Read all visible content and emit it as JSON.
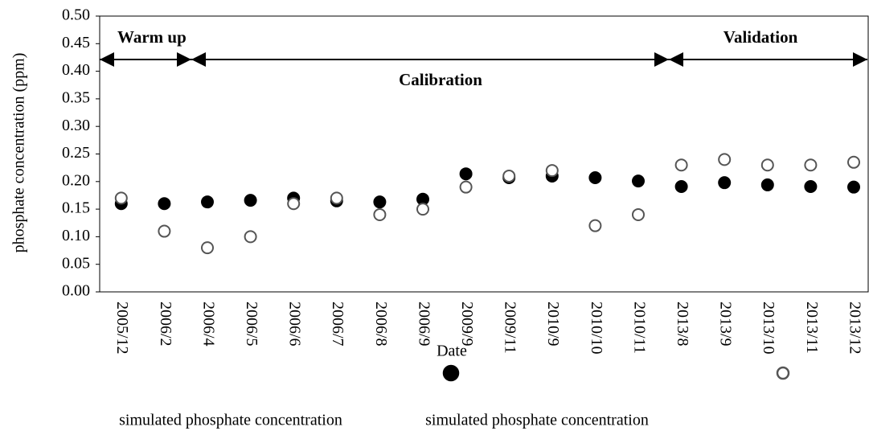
{
  "chart_data": {
    "type": "scatter",
    "ylabel": "phosphate concentration (ppm)",
    "xlabel": "Date",
    "annotations": [
      "Warm up",
      "Calibration",
      "Validation"
    ],
    "categories": [
      "2005/12",
      "2006/2",
      "2006/4",
      "2006/5",
      "2006/6",
      "2006/7",
      "2006/8",
      "2006/9",
      "2009/9",
      "2009/11",
      "2010/9",
      "2010/10",
      "2010/11",
      "2013/8",
      "2013/9",
      "2013/10",
      "2013/11",
      "2013/12"
    ],
    "series": [
      {
        "name": "simulated phosphate concentration",
        "color": "#000000",
        "filled": true,
        "values": [
          0.16,
          0.16,
          0.163,
          0.166,
          0.17,
          0.165,
          0.163,
          0.168,
          0.214,
          0.207,
          0.21,
          0.207,
          0.201,
          0.191,
          0.198,
          0.194,
          0.191,
          0.19
        ]
      },
      {
        "name": "simulated phosphate concentration",
        "color": "#555555",
        "filled": false,
        "values": [
          0.17,
          0.11,
          0.08,
          0.1,
          0.16,
          0.17,
          0.14,
          0.15,
          0.19,
          0.21,
          0.22,
          0.12,
          0.14,
          0.23,
          0.24,
          0.23,
          0.23,
          0.235
        ]
      }
    ],
    "ylim": [
      0,
      0.5
    ],
    "yticks": [
      {
        "value": 0,
        "label": "0.00"
      },
      {
        "value": 0.05,
        "label": "0.05"
      },
      {
        "value": 0.1,
        "label": "0.10"
      },
      {
        "value": 0.15,
        "label": "0.15"
      },
      {
        "value": 0.2,
        "label": "0.20"
      },
      {
        "value": 0.25,
        "label": "0.25"
      },
      {
        "value": 0.3,
        "label": "0.30"
      },
      {
        "value": 0.35,
        "label": "0.35"
      },
      {
        "value": 0.4,
        "label": "0.40"
      },
      {
        "value": 0.45,
        "label": "0.45"
      },
      {
        "value": 0.5,
        "label": "0.50"
      }
    ],
    "grid": false
  }
}
